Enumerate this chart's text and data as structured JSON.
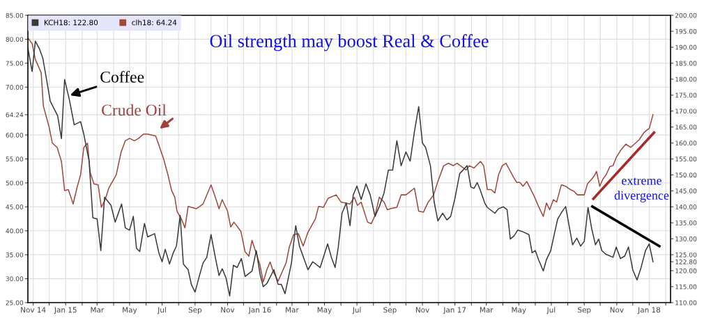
{
  "chart_data": {
    "type": "line",
    "title": "Oil strength may boost Real & Coffee",
    "xlim": [
      "2014-10-22",
      "2018-02-10"
    ],
    "xticks": [
      {
        "value": "2014-11-01",
        "label": "Nov 14"
      },
      {
        "value": "2014-12-01",
        "label": null
      },
      {
        "value": "2015-01-01",
        "label": "Jan 15"
      },
      {
        "value": "2015-02-01",
        "label": null
      },
      {
        "value": "2015-03-01",
        "label": "Mar"
      },
      {
        "value": "2015-04-01",
        "label": null
      },
      {
        "value": "2015-05-01",
        "label": "May"
      },
      {
        "value": "2015-06-01",
        "label": null
      },
      {
        "value": "2015-07-01",
        "label": "Jul"
      },
      {
        "value": "2015-08-01",
        "label": null
      },
      {
        "value": "2015-09-01",
        "label": "Sep"
      },
      {
        "value": "2015-10-01",
        "label": null
      },
      {
        "value": "2015-11-01",
        "label": "Nov"
      },
      {
        "value": "2015-12-01",
        "label": null
      },
      {
        "value": "2016-01-01",
        "label": "Jan 16"
      },
      {
        "value": "2016-02-01",
        "label": null
      },
      {
        "value": "2016-03-01",
        "label": "Mar"
      },
      {
        "value": "2016-04-01",
        "label": null
      },
      {
        "value": "2016-05-01",
        "label": "May"
      },
      {
        "value": "2016-06-01",
        "label": null
      },
      {
        "value": "2016-07-01",
        "label": "Jul"
      },
      {
        "value": "2016-08-01",
        "label": null
      },
      {
        "value": "2016-09-01",
        "label": "Sep"
      },
      {
        "value": "2016-10-01",
        "label": null
      },
      {
        "value": "2016-11-01",
        "label": "Nov"
      },
      {
        "value": "2016-12-01",
        "label": null
      },
      {
        "value": "2017-01-01",
        "label": "Jan 17"
      },
      {
        "value": "2017-02-01",
        "label": null
      },
      {
        "value": "2017-03-01",
        "label": "Mar"
      },
      {
        "value": "2017-04-01",
        "label": null
      },
      {
        "value": "2017-05-01",
        "label": "May"
      },
      {
        "value": "2017-06-01",
        "label": null
      },
      {
        "value": "2017-07-01",
        "label": "Jul"
      },
      {
        "value": "2017-08-01",
        "label": null
      },
      {
        "value": "2017-09-01",
        "label": "Sep"
      },
      {
        "value": "2017-10-01",
        "label": null
      },
      {
        "value": "2017-11-01",
        "label": "Nov"
      },
      {
        "value": "2017-12-01",
        "label": null
      },
      {
        "value": "2018-01-01",
        "label": "Jan 18"
      },
      {
        "value": "2018-02-01",
        "label": null
      }
    ],
    "ylim": [
      25,
      85
    ],
    "yticks": [
      {
        "value": 25,
        "label": "25.00"
      },
      {
        "value": 30,
        "label": "30.00"
      },
      {
        "value": 35,
        "label": "35.00"
      },
      {
        "value": 40,
        "label": "40.00"
      },
      {
        "value": 45,
        "label": "45.00"
      },
      {
        "value": 50,
        "label": "50.00"
      },
      {
        "value": 55,
        "label": "55.00"
      },
      {
        "value": 60,
        "label": "60.00"
      },
      {
        "value": 64.24,
        "label": "64.24"
      },
      {
        "value": 70,
        "label": "70.00"
      },
      {
        "value": 75,
        "label": "75.00"
      },
      {
        "value": 80,
        "label": "80.00"
      },
      {
        "value": 85,
        "label": "85.00"
      }
    ],
    "y2lim": [
      110,
      200
    ],
    "y2ticks": [
      {
        "value": 110,
        "label": "110.00"
      },
      {
        "value": 115,
        "label": "115.00"
      },
      {
        "value": 120,
        "label": "120.00"
      },
      {
        "value": 122.8,
        "label": "122.80"
      },
      {
        "value": 125,
        "label": "125.00"
      },
      {
        "value": 130,
        "label": "130.00"
      },
      {
        "value": 135,
        "label": "135.00"
      },
      {
        "value": 140,
        "label": "140.00"
      },
      {
        "value": 145,
        "label": "145.00"
      },
      {
        "value": 150,
        "label": "150.00"
      },
      {
        "value": 155,
        "label": "155.00"
      },
      {
        "value": 160,
        "label": "160.00"
      },
      {
        "value": 165,
        "label": "165.00"
      },
      {
        "value": 170,
        "label": "170.00"
      },
      {
        "value": 175,
        "label": "175.00"
      },
      {
        "value": 180,
        "label": "180.00"
      },
      {
        "value": 185,
        "label": "185.00"
      },
      {
        "value": 190,
        "label": "190.00"
      },
      {
        "value": 195,
        "label": "195.00"
      },
      {
        "value": 200,
        "label": "200.00"
      }
    ],
    "grid": true,
    "legend": "top left",
    "annotations": [
      {
        "text": "Coffee",
        "x": "2015-01-09",
        "y": 68.3
      },
      "Crude Oil",
      "extreme\ndivergence"
    ],
    "series": [
      {
        "name": "KCH18: 122.80",
        "color": "#3a3a3a",
        "axis": "y2",
        "x": [
          "2014-10-22",
          "2014-10-30",
          "2014-11-05",
          "2014-11-13",
          "2014-11-19",
          "2014-11-26",
          "2014-12-03",
          "2014-12-17",
          "2014-12-24",
          "2014-12-30",
          "2015-01-08",
          "2015-01-17",
          "2015-01-29",
          "2015-02-04",
          "2015-02-14",
          "2015-02-21",
          "2015-03-01",
          "2015-03-08",
          "2015-03-15",
          "2015-03-27",
          "2015-04-04",
          "2015-04-16",
          "2015-04-23",
          "2015-05-01",
          "2015-05-08",
          "2015-05-14",
          "2015-05-20",
          "2015-05-29",
          "2015-06-04",
          "2015-06-17",
          "2015-06-25",
          "2015-07-01",
          "2015-07-07",
          "2015-07-15",
          "2015-07-22",
          "2015-07-28",
          "2015-08-04",
          "2015-08-10",
          "2015-08-19",
          "2015-08-25",
          "2015-09-01",
          "2015-09-10",
          "2015-09-16",
          "2015-09-23",
          "2015-10-01",
          "2015-10-09",
          "2015-10-16",
          "2015-10-22",
          "2015-10-29",
          "2015-11-05",
          "2015-11-12",
          "2015-11-19",
          "2015-11-27",
          "2015-12-04",
          "2015-12-17",
          "2015-12-25",
          "2016-01-01",
          "2016-01-07",
          "2016-01-14",
          "2016-01-27",
          "2016-02-04",
          "2016-02-10",
          "2016-02-17",
          "2016-02-29",
          "2016-03-08",
          "2016-03-15",
          "2016-03-31",
          "2016-04-09",
          "2016-04-23",
          "2016-05-07",
          "2016-05-14",
          "2016-05-21",
          "2016-05-27",
          "2016-06-03",
          "2016-06-11",
          "2016-06-18",
          "2016-06-24",
          "2016-07-01",
          "2016-07-09",
          "2016-07-18",
          "2016-07-26",
          "2016-08-04",
          "2016-08-12",
          "2016-08-21",
          "2016-08-29",
          "2016-09-06",
          "2016-09-14",
          "2016-09-22",
          "2016-10-01",
          "2016-10-09",
          "2016-10-17",
          "2016-10-25",
          "2016-11-01",
          "2016-11-07",
          "2016-11-16",
          "2016-11-23",
          "2016-11-30",
          "2016-12-09",
          "2016-12-17",
          "2016-12-24",
          "2017-01-01",
          "2017-01-10",
          "2017-01-24",
          "2017-01-31",
          "2017-02-06",
          "2017-02-12",
          "2017-02-18",
          "2017-02-26",
          "2017-03-03",
          "2017-03-17",
          "2017-03-24",
          "2017-04-02",
          "2017-04-09",
          "2017-04-15",
          "2017-04-22",
          "2017-04-29",
          "2017-05-07",
          "2017-05-20",
          "2017-05-26",
          "2017-06-01",
          "2017-06-07",
          "2017-06-16",
          "2017-06-22",
          "2017-06-30",
          "2017-07-06",
          "2017-07-13",
          "2017-07-21",
          "2017-07-28",
          "2017-08-10",
          "2017-08-18",
          "2017-08-25",
          "2017-09-01",
          "2017-09-08",
          "2017-09-15",
          "2017-09-22",
          "2017-09-28",
          "2017-10-04",
          "2017-10-11",
          "2017-10-25",
          "2017-10-31",
          "2017-11-08",
          "2017-11-16",
          "2017-11-23",
          "2017-12-01",
          "2017-12-09",
          "2017-12-16",
          "2017-12-25",
          "2018-01-01",
          "2018-01-08"
        ],
        "values": [
          189.8,
          182.4,
          191.9,
          189.4,
          186.6,
          179.9,
          173.1,
          168.5,
          161.4,
          179.9,
          173.5,
          165.7,
          166.7,
          162.8,
          154.3,
          136.6,
          136.2,
          126.3,
          143.0,
          140.5,
          135.2,
          140.9,
          133.4,
          132.7,
          137.0,
          127.0,
          126.0,
          134.8,
          130.6,
          131.6,
          125.6,
          122.8,
          126.7,
          122.1,
          125.6,
          127.7,
          137.3,
          122.1,
          120.3,
          115.7,
          113.3,
          118.9,
          122.4,
          124.2,
          131.3,
          124.2,
          118.5,
          120.6,
          117.8,
          112.1,
          121.7,
          121.0,
          123.8,
          118.2,
          119.9,
          126.3,
          118.9,
          115.0,
          116.0,
          120.3,
          115.7,
          115.7,
          112.8,
          122.4,
          134.1,
          127.7,
          120.3,
          122.8,
          121.0,
          128.4,
          124.2,
          121.0,
          127.4,
          138.0,
          141.2,
          134.1,
          143.7,
          146.5,
          142.3,
          147.2,
          143.7,
          137.0,
          140.1,
          144.4,
          151.5,
          151.5,
          160.7,
          152.9,
          157.2,
          154.3,
          163.6,
          171.4,
          160.0,
          158.6,
          152.9,
          141.6,
          135.6,
          138.0,
          135.9,
          137.0,
          142.6,
          150.4,
          152.9,
          146.2,
          145.8,
          147.6,
          145.1,
          141.2,
          139.8,
          138.0,
          139.4,
          140.0,
          139.1,
          129.9,
          130.9,
          132.7,
          132.3,
          131.3,
          125.6,
          126.3,
          123.5,
          119.9,
          123.5,
          126.3,
          130.9,
          136.2,
          138.4,
          140.1,
          128.1,
          130.2,
          127.7,
          129.2,
          139.8,
          133.1,
          128.1,
          129.9,
          126.3,
          125.2,
          124.2,
          127.4,
          123.8,
          124.6,
          127.4,
          120.3,
          117.1,
          120.6,
          126.3,
          128.4,
          122.8
        ]
      },
      {
        "name": "clh18: 64.24",
        "color": "#a0483c",
        "x": [
          "2014-10-22",
          "2014-10-30",
          "2014-11-05",
          "2014-11-16",
          "2014-11-20",
          "2014-12-01",
          "2014-12-07",
          "2014-12-16",
          "2014-12-24",
          "2014-12-30",
          "2015-01-06",
          "2015-01-15",
          "2015-01-22",
          "2015-01-29",
          "2015-02-04",
          "2015-02-11",
          "2015-02-16",
          "2015-02-23",
          "2015-03-03",
          "2015-03-09",
          "2015-03-16",
          "2015-03-23",
          "2015-04-06",
          "2015-04-15",
          "2015-04-23",
          "2015-05-01",
          "2015-05-10",
          "2015-05-18",
          "2015-05-27",
          "2015-06-04",
          "2015-06-19",
          "2015-06-25",
          "2015-07-04",
          "2015-07-12",
          "2015-07-19",
          "2015-07-25",
          "2015-07-29",
          "2015-08-07",
          "2015-08-13",
          "2015-08-19",
          "2015-09-03",
          "2015-09-10",
          "2015-09-16",
          "2015-10-01",
          "2015-10-09",
          "2015-10-16",
          "2015-10-22",
          "2015-11-01",
          "2015-11-07",
          "2015-11-13",
          "2015-11-26",
          "2015-12-04",
          "2015-12-11",
          "2015-12-17",
          "2016-01-01",
          "2016-01-07",
          "2016-01-14",
          "2016-01-20",
          "2016-01-26",
          "2016-02-04",
          "2016-02-19",
          "2016-02-25",
          "2016-03-04",
          "2016-03-13",
          "2016-03-22",
          "2016-03-31",
          "2016-04-14",
          "2016-04-20",
          "2016-04-29",
          "2016-05-08",
          "2016-05-23",
          "2016-06-01",
          "2016-06-18",
          "2016-06-26",
          "2016-07-02",
          "2016-07-09",
          "2016-07-21",
          "2016-07-28",
          "2016-08-04",
          "2016-08-12",
          "2016-08-21",
          "2016-08-27",
          "2016-09-02",
          "2016-09-14",
          "2016-09-22",
          "2016-10-01",
          "2016-10-09",
          "2016-10-17",
          "2016-10-25",
          "2016-11-03",
          "2016-11-12",
          "2016-11-22",
          "2016-11-30",
          "2016-12-11",
          "2016-12-20",
          "2016-12-29",
          "2017-01-05",
          "2017-01-22",
          "2017-01-28",
          "2017-02-06",
          "2017-02-18",
          "2017-02-24",
          "2017-03-03",
          "2017-03-10",
          "2017-03-17",
          "2017-03-24",
          "2017-03-31",
          "2017-04-07",
          "2017-04-21",
          "2017-04-27",
          "2017-05-03",
          "2017-05-09",
          "2017-05-16",
          "2017-05-30",
          "2017-06-07",
          "2017-06-16",
          "2017-06-22",
          "2017-06-28",
          "2017-07-05",
          "2017-07-11",
          "2017-07-20",
          "2017-07-28",
          "2017-08-06",
          "2017-08-13",
          "2017-08-19",
          "2017-09-01",
          "2017-09-07",
          "2017-09-15",
          "2017-09-20",
          "2017-09-24",
          "2017-09-30",
          "2017-10-06",
          "2017-10-12",
          "2017-10-19",
          "2017-10-25",
          "2017-10-31",
          "2017-11-09",
          "2017-11-18",
          "2017-11-27",
          "2017-12-13",
          "2017-12-22",
          "2018-01-01",
          "2018-01-08"
        ],
        "values": [
          80.3,
          79.1,
          75.8,
          73.0,
          66.1,
          61.6,
          58.3,
          57.4,
          54.5,
          48.4,
          48.6,
          45.6,
          48.9,
          51.7,
          57.4,
          58.3,
          52.2,
          49.8,
          49.6,
          44.9,
          46.5,
          48.9,
          51.7,
          56.4,
          58.8,
          59.3,
          58.8,
          59.3,
          60.2,
          60.2,
          59.8,
          57.9,
          55.0,
          51.7,
          48.4,
          47.0,
          44.1,
          42.3,
          40.6,
          45.1,
          44.6,
          45.1,
          45.6,
          49.6,
          47.0,
          44.6,
          46.5,
          44.1,
          40.8,
          41.8,
          39.9,
          35.6,
          34.7,
          38.0,
          32.8,
          29.3,
          31.9,
          33.5,
          31.4,
          29.5,
          33.3,
          36.6,
          39.2,
          39.4,
          36.8,
          39.7,
          42.5,
          45.1,
          44.9,
          46.8,
          47.5,
          46.0,
          45.6,
          47.0,
          45.3,
          46.0,
          41.8,
          41.5,
          43.2,
          47.0,
          46.0,
          44.4,
          44.6,
          44.9,
          47.5,
          47.5,
          48.2,
          48.9,
          44.1,
          43.9,
          46.0,
          47.5,
          50.3,
          53.6,
          54.1,
          53.6,
          54.1,
          52.7,
          53.6,
          53.1,
          54.5,
          53.6,
          48.6,
          48.6,
          47.9,
          51.7,
          53.6,
          54.1,
          51.2,
          50.1,
          50.1,
          49.3,
          50.3,
          47.2,
          45.1,
          43.0,
          45.8,
          44.4,
          46.5,
          46.0,
          49.6,
          49.3,
          48.6,
          48.2,
          47.5,
          47.5,
          49.8,
          50.8,
          51.5,
          52.4,
          49.3,
          50.8,
          51.7,
          53.4,
          53.6,
          55.3,
          56.9,
          58.1,
          57.4,
          59.0,
          60.5,
          61.4,
          64.24
        ]
      },
      {
        "color": "#a52a2a",
        "x": [
          "2017-09-18",
          "2018-01-10"
        ],
        "values": [
          46.7,
          60.5
        ]
      },
      {
        "color": "#000000",
        "axis": "y2",
        "x": [
          "2017-09-16",
          "2018-01-20"
        ],
        "values": [
          140.1,
          127.7
        ]
      }
    ]
  }
}
